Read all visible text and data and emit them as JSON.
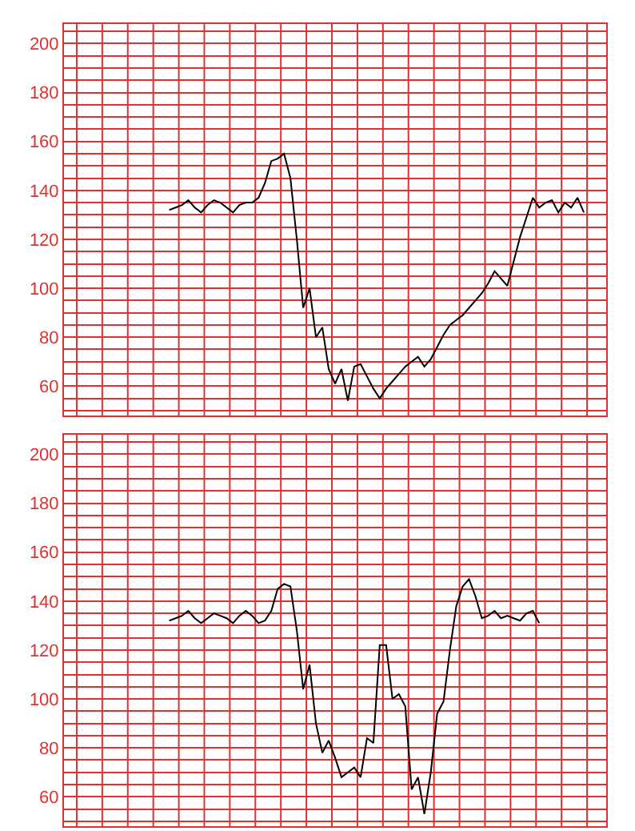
{
  "chart_data": [
    {
      "type": "line",
      "categories": [
        null,
        null,
        null,
        null,
        null,
        null,
        null,
        null,
        null,
        null,
        null,
        null,
        null,
        null,
        null,
        null,
        null,
        null,
        null,
        null,
        null,
        null,
        null,
        null,
        null,
        null,
        null,
        null,
        null,
        null,
        null,
        null,
        null,
        null,
        null,
        null,
        null,
        null,
        null,
        null,
        null,
        null,
        null,
        null,
        null,
        null,
        null,
        null,
        null,
        null,
        null,
        null,
        null,
        null,
        null,
        null,
        null,
        null,
        null,
        null,
        null,
        null,
        null,
        null,
        null,
        null,
        null,
        null,
        null,
        null,
        null,
        null,
        null,
        null,
        null,
        null,
        null,
        null,
        null,
        null,
        null,
        null,
        null,
        null,
        null
      ],
      "series": [
        {
          "color": "#000000",
          "values": [
            null,
            null,
            null,
            null,
            null,
            null,
            null,
            null,
            null,
            null,
            null,
            null,
            null,
            null,
            null,
            null,
            132,
            133,
            134,
            136,
            133,
            131,
            134,
            136,
            135,
            133,
            131,
            134,
            135,
            135,
            137,
            143,
            152,
            153,
            155,
            145,
            120,
            92,
            100,
            80,
            84,
            67,
            61,
            67,
            54,
            68,
            69,
            64,
            59,
            55,
            59,
            62,
            65,
            68,
            70,
            72,
            68,
            71,
            76,
            81,
            85,
            87,
            89,
            92,
            95,
            98,
            102,
            107,
            104,
            101,
            111,
            121,
            129,
            137,
            133,
            135,
            136,
            131,
            135,
            133,
            137,
            131,
            null,
            null,
            null
          ]
        }
      ],
      "ylim": [
        48,
        208
      ],
      "yticks": [
        {
          "value": 50,
          "label": null
        },
        {
          "value": 55,
          "label": null
        },
        60,
        {
          "value": 65,
          "label": null
        },
        {
          "value": 70,
          "label": null
        },
        {
          "value": 75,
          "label": null
        },
        80,
        {
          "value": 85,
          "label": null
        },
        {
          "value": 90,
          "label": null
        },
        {
          "value": 95,
          "label": null
        },
        100,
        {
          "value": 105,
          "label": null
        },
        {
          "value": 110,
          "label": null
        },
        {
          "value": 115,
          "label": null
        },
        120,
        {
          "value": 125,
          "label": null
        },
        {
          "value": 130,
          "label": null
        },
        {
          "value": 135,
          "label": null
        },
        140,
        {
          "value": 145,
          "label": null
        },
        {
          "value": 150,
          "label": null
        },
        {
          "value": 155,
          "label": null
        },
        160,
        {
          "value": 165,
          "label": null
        },
        {
          "value": 170,
          "label": null
        },
        {
          "value": 175,
          "label": null
        },
        180,
        {
          "value": 185,
          "label": null
        },
        {
          "value": 190,
          "label": null
        },
        {
          "value": 195,
          "label": null
        },
        200,
        {
          "value": 205,
          "label": null
        }
      ],
      "tick_labels": "y",
      "grid": true,
      "line_style": "solid"
    },
    {
      "type": "line",
      "categories": [
        null,
        null,
        null,
        null,
        null,
        null,
        null,
        null,
        null,
        null,
        null,
        null,
        null,
        null,
        null,
        null,
        null,
        null,
        null,
        null,
        null,
        null,
        null,
        null,
        null,
        null,
        null,
        null,
        null,
        null,
        null,
        null,
        null,
        null,
        null,
        null,
        null,
        null,
        null,
        null,
        null,
        null,
        null,
        null,
        null,
        null,
        null,
        null,
        null,
        null,
        null,
        null,
        null,
        null,
        null,
        null,
        null,
        null,
        null,
        null,
        null,
        null,
        null,
        null,
        null,
        null,
        null,
        null,
        null,
        null,
        null,
        null,
        null,
        null,
        null,
        null,
        null,
        null,
        null,
        null,
        null,
        null,
        null,
        null,
        null
      ],
      "series": [
        {
          "color": "#000000",
          "values": [
            null,
            null,
            null,
            null,
            null,
            null,
            null,
            null,
            null,
            null,
            null,
            null,
            null,
            null,
            null,
            null,
            132,
            133,
            134,
            136,
            133,
            131,
            133,
            135,
            134,
            133,
            131,
            134,
            136,
            134,
            131,
            132,
            136,
            145,
            147,
            146,
            128,
            104,
            114,
            90,
            78,
            83,
            76,
            68,
            70,
            72,
            68,
            84,
            82,
            122,
            122,
            100,
            102,
            97,
            63,
            68,
            53,
            70,
            94,
            99,
            120,
            138,
            146,
            149,
            142,
            133,
            134,
            136,
            133,
            134,
            133,
            132,
            135,
            136,
            131,
            null,
            null,
            null,
            null,
            null,
            null,
            null,
            null,
            null,
            null
          ]
        }
      ],
      "ylim": [
        48,
        208
      ],
      "yticks": [
        {
          "value": 50,
          "label": null
        },
        {
          "value": 55,
          "label": null
        },
        60,
        {
          "value": 65,
          "label": null
        },
        {
          "value": 70,
          "label": null
        },
        {
          "value": 75,
          "label": null
        },
        80,
        {
          "value": 85,
          "label": null
        },
        {
          "value": 90,
          "label": null
        },
        {
          "value": 95,
          "label": null
        },
        100,
        {
          "value": 105,
          "label": null
        },
        {
          "value": 110,
          "label": null
        },
        {
          "value": 115,
          "label": null
        },
        120,
        {
          "value": 125,
          "label": null
        },
        {
          "value": 130,
          "label": null
        },
        {
          "value": 135,
          "label": null
        },
        140,
        {
          "value": 145,
          "label": null
        },
        {
          "value": 150,
          "label": null
        },
        {
          "value": 155,
          "label": null
        },
        160,
        {
          "value": 165,
          "label": null
        },
        {
          "value": 170,
          "label": null
        },
        {
          "value": 175,
          "label": null
        },
        180,
        {
          "value": 185,
          "label": null
        },
        {
          "value": 190,
          "label": null
        },
        {
          "value": 195,
          "label": null
        },
        200,
        {
          "value": 205,
          "label": null
        }
      ],
      "tick_labels": "y",
      "grid": true,
      "line_style": "solid"
    }
  ]
}
